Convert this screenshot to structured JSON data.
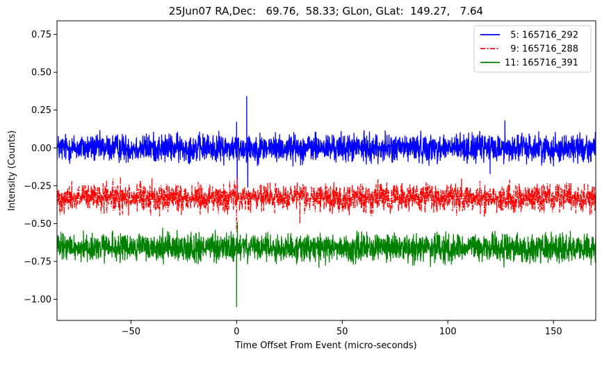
{
  "chart_data": {
    "type": "line",
    "title": "25Jun07 RA,Dec:   69.76,  58.33; GLon, GLat:  149.27,   7.64",
    "xlabel": "Time Offset From Event (micro-seconds)",
    "ylabel": "Intensity (Counts)",
    "xlim": [
      -85,
      170
    ],
    "ylim": [
      -1.14,
      0.84
    ],
    "xticks": [
      -50,
      0,
      50,
      100,
      150
    ],
    "xtick_labels": [
      "−50",
      "0",
      "50",
      "100",
      "150"
    ],
    "yticks": [
      0.75,
      0.5,
      0.25,
      0.0,
      -0.25,
      -0.5,
      -0.75,
      -1.0
    ],
    "ytick_labels": [
      "0.75",
      "0.50",
      "0.25",
      "0.00",
      "−0.25",
      "−0.50",
      "−0.75",
      "−1.00"
    ],
    "legend_position": "top-right",
    "series": [
      {
        "name": "5: 165716_292",
        "legend_label": "  5: 165716_292",
        "color": "#0000ff",
        "style": "solid",
        "baseline": 0.0,
        "noise_amplitude": 0.045,
        "spikes": [
          {
            "x": 0.0,
            "y": 0.17
          },
          {
            "x": 0.3,
            "y": -0.3
          },
          {
            "x": 4.8,
            "y": 0.34
          },
          {
            "x": 5.3,
            "y": -0.26
          },
          {
            "x": 120.0,
            "y": -0.17
          },
          {
            "x": 127.0,
            "y": 0.18
          },
          {
            "x": 150.0,
            "y": -0.12
          }
        ]
      },
      {
        "name": "9: 165716_288",
        "legend_label": "  9: 165716_288",
        "color": "#ff0000",
        "style": "dashdot",
        "baseline": -0.33,
        "noise_amplitude": 0.045,
        "spikes": [
          {
            "x": 0.0,
            "y": -0.55
          },
          {
            "x": 0.4,
            "y": -0.2
          },
          {
            "x": 30.0,
            "y": -0.5
          },
          {
            "x": -55.0,
            "y": -0.19
          }
        ]
      },
      {
        "name": "11: 165716_391",
        "legend_label": "11: 165716_391",
        "color": "#008000",
        "style": "solid",
        "baseline": -0.66,
        "noise_amplitude": 0.045,
        "spikes": [
          {
            "x": 0.0,
            "y": -1.05
          },
          {
            "x": 0.4,
            "y": -0.49
          },
          {
            "x": -35.0,
            "y": -0.53
          },
          {
            "x": 158.0,
            "y": -0.55
          }
        ]
      }
    ]
  }
}
